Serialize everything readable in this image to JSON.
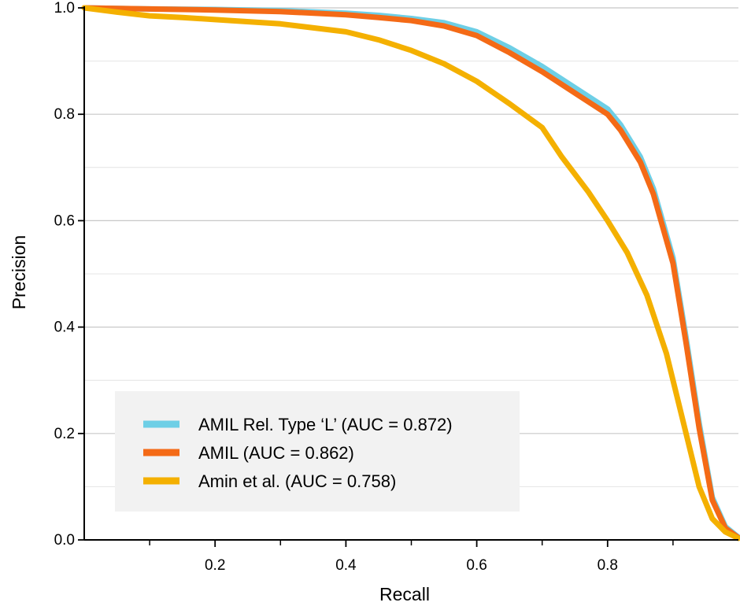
{
  "chart_data": {
    "type": "line",
    "xlabel": "Recall",
    "ylabel": "Precision",
    "xlim": [
      0,
      1
    ],
    "ylim": [
      0,
      1
    ],
    "x_ticks": [
      0.2,
      0.4,
      0.6,
      0.8
    ],
    "x_tick_labels": [
      "0.2",
      "0.4",
      "0.6",
      "0.8"
    ],
    "x_minor_ticks": [
      0.1,
      0.3,
      0.5,
      0.7,
      0.9
    ],
    "y_ticks": [
      0,
      0.2,
      0.4,
      0.6,
      0.8,
      1.0
    ],
    "y_tick_labels": [
      "0.0",
      "0.2",
      "0.4",
      "0.6",
      "0.8",
      "1.0"
    ],
    "y_minor_gridlines": [
      0.1,
      0.3,
      0.5,
      0.7,
      0.9
    ],
    "grid": "horizontal",
    "legend_position": "lower-left",
    "series": [
      {
        "name": "AMIL Rel. Type ‘L’ (AUC = 0.872)",
        "color": "#6ecfe6",
        "points": [
          [
            0,
            1.0
          ],
          [
            0.1,
            0.998
          ],
          [
            0.2,
            0.997
          ],
          [
            0.3,
            0.995
          ],
          [
            0.4,
            0.99
          ],
          [
            0.45,
            0.986
          ],
          [
            0.5,
            0.98
          ],
          [
            0.55,
            0.972
          ],
          [
            0.6,
            0.955
          ],
          [
            0.65,
            0.925
          ],
          [
            0.7,
            0.89
          ],
          [
            0.75,
            0.85
          ],
          [
            0.8,
            0.81
          ],
          [
            0.82,
            0.78
          ],
          [
            0.85,
            0.72
          ],
          [
            0.87,
            0.66
          ],
          [
            0.9,
            0.53
          ],
          [
            0.92,
            0.38
          ],
          [
            0.94,
            0.22
          ],
          [
            0.96,
            0.08
          ],
          [
            0.98,
            0.025
          ],
          [
            1.0,
            0.005
          ]
        ]
      },
      {
        "name": "AMIL (AUC = 0.862)",
        "color": "#f46a16",
        "points": [
          [
            0,
            1.0
          ],
          [
            0.1,
            0.998
          ],
          [
            0.2,
            0.996
          ],
          [
            0.3,
            0.993
          ],
          [
            0.4,
            0.987
          ],
          [
            0.45,
            0.982
          ],
          [
            0.5,
            0.976
          ],
          [
            0.55,
            0.966
          ],
          [
            0.6,
            0.948
          ],
          [
            0.65,
            0.916
          ],
          [
            0.7,
            0.88
          ],
          [
            0.75,
            0.84
          ],
          [
            0.8,
            0.8
          ],
          [
            0.82,
            0.77
          ],
          [
            0.85,
            0.71
          ],
          [
            0.87,
            0.65
          ],
          [
            0.9,
            0.52
          ],
          [
            0.92,
            0.37
          ],
          [
            0.94,
            0.21
          ],
          [
            0.96,
            0.075
          ],
          [
            0.98,
            0.022
          ],
          [
            1.0,
            0.004
          ]
        ]
      },
      {
        "name": "Amin et al. (AUC = 0.758)",
        "color": "#f4b000",
        "points": [
          [
            0,
            1.0
          ],
          [
            0.05,
            0.992
          ],
          [
            0.1,
            0.985
          ],
          [
            0.15,
            0.982
          ],
          [
            0.2,
            0.978
          ],
          [
            0.3,
            0.97
          ],
          [
            0.4,
            0.955
          ],
          [
            0.45,
            0.94
          ],
          [
            0.5,
            0.92
          ],
          [
            0.55,
            0.895
          ],
          [
            0.6,
            0.862
          ],
          [
            0.65,
            0.82
          ],
          [
            0.7,
            0.775
          ],
          [
            0.73,
            0.72
          ],
          [
            0.77,
            0.655
          ],
          [
            0.8,
            0.6
          ],
          [
            0.83,
            0.54
          ],
          [
            0.86,
            0.46
          ],
          [
            0.89,
            0.35
          ],
          [
            0.92,
            0.2
          ],
          [
            0.94,
            0.1
          ],
          [
            0.96,
            0.04
          ],
          [
            0.98,
            0.015
          ],
          [
            1.0,
            0.003
          ]
        ]
      }
    ]
  }
}
